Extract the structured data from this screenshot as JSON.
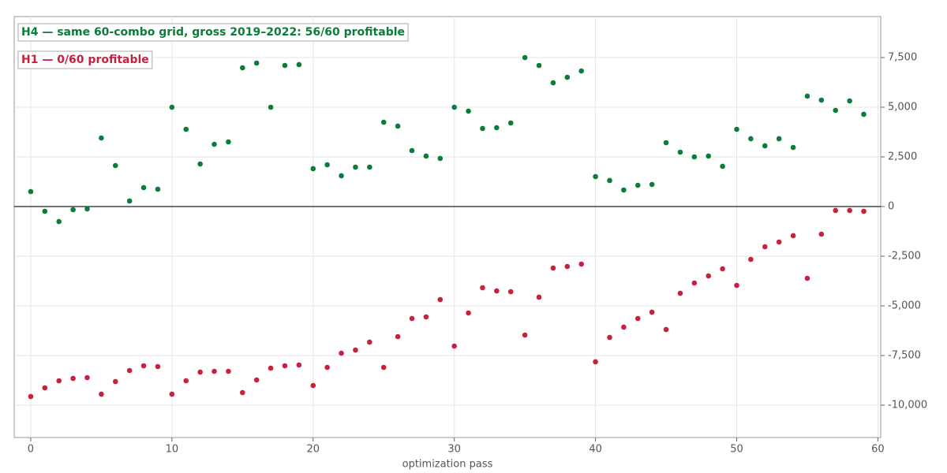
{
  "chart_data": {
    "type": "scatter",
    "x_label": "optimization pass",
    "xlim": [
      -1.17,
      60.2
    ],
    "xticks": [
      0,
      10,
      20,
      30,
      40,
      50,
      60
    ],
    "ylim": [
      -11627,
      9563
    ],
    "yticks": [
      {
        "value": -10000,
        "label": "-10,000"
      },
      {
        "value": -7500,
        "label": "-7,500"
      },
      {
        "value": -5000,
        "label": "-5,000"
      },
      {
        "value": -2500,
        "label": "-2,500"
      },
      0,
      {
        "value": 2500,
        "label": "2,500"
      },
      {
        "value": 5000,
        "label": "5,000"
      },
      {
        "value": 7500,
        "label": "7,500"
      }
    ],
    "grid": true,
    "zero_line": true,
    "legend": "upper left",
    "x": [
      0,
      1,
      2,
      3,
      4,
      5,
      6,
      7,
      8,
      9,
      10,
      11,
      12,
      13,
      14,
      15,
      16,
      17,
      18,
      19,
      20,
      21,
      22,
      23,
      24,
      25,
      26,
      27,
      28,
      29,
      30,
      31,
      32,
      33,
      34,
      35,
      36,
      37,
      38,
      39,
      40,
      41,
      42,
      43,
      44,
      45,
      46,
      47,
      48,
      49,
      50,
      51,
      52,
      53,
      54,
      55,
      56,
      57,
      58,
      59
    ],
    "series": [
      {
        "name": "H4 — same 60-combo grid, gross 2019–2022: 56/60 profitable",
        "color": "#0a7d3b",
        "values": [
          754,
          -238,
          -754,
          -159,
          -119,
          3452,
          2063,
          278,
          952,
          873,
          5000,
          3889,
          2143,
          3135,
          3254,
          6984,
          7222,
          5000,
          7103,
          7143,
          1905,
          2103,
          1548,
          1984,
          1984,
          4246,
          4048,
          2817,
          2540,
          2421,
          5000,
          4802,
          3929,
          3968,
          4206,
          7500,
          7103,
          6230,
          6508,
          6825,
          1508,
          1310,
          833,
          1071,
          1111,
          3214,
          2738,
          2500,
          2540,
          2024,
          3889,
          3413,
          3056,
          3413,
          2976,
          5556,
          5357,
          4841,
          5317,
          4643
        ]
      },
      {
        "name": "H1 — 0/60 profitable",
        "color": "#c8213f",
        "values": [
          -9563,
          -9127,
          -8770,
          -8651,
          -8611,
          -9444,
          -8810,
          -8254,
          -8016,
          -8056,
          -9444,
          -8770,
          -8333,
          -8294,
          -8294,
          -9365,
          -8730,
          -8135,
          -8016,
          -7976,
          -9008,
          -8095,
          -7381,
          -7222,
          -6825,
          -8095,
          -6548,
          -5635,
          -5556,
          -4683,
          -7024,
          -5357,
          -4087,
          -4246,
          -4286,
          -6468,
          -4563,
          -3095,
          -3016,
          -2897,
          -7817,
          -6587,
          -6071,
          -5635,
          -5317,
          -6190,
          -4365,
          -3849,
          -3492,
          -3135,
          -3968,
          -2659,
          -2024,
          -1786,
          -1468,
          -3611,
          -1389,
          -198,
          -198,
          -238
        ]
      }
    ]
  }
}
